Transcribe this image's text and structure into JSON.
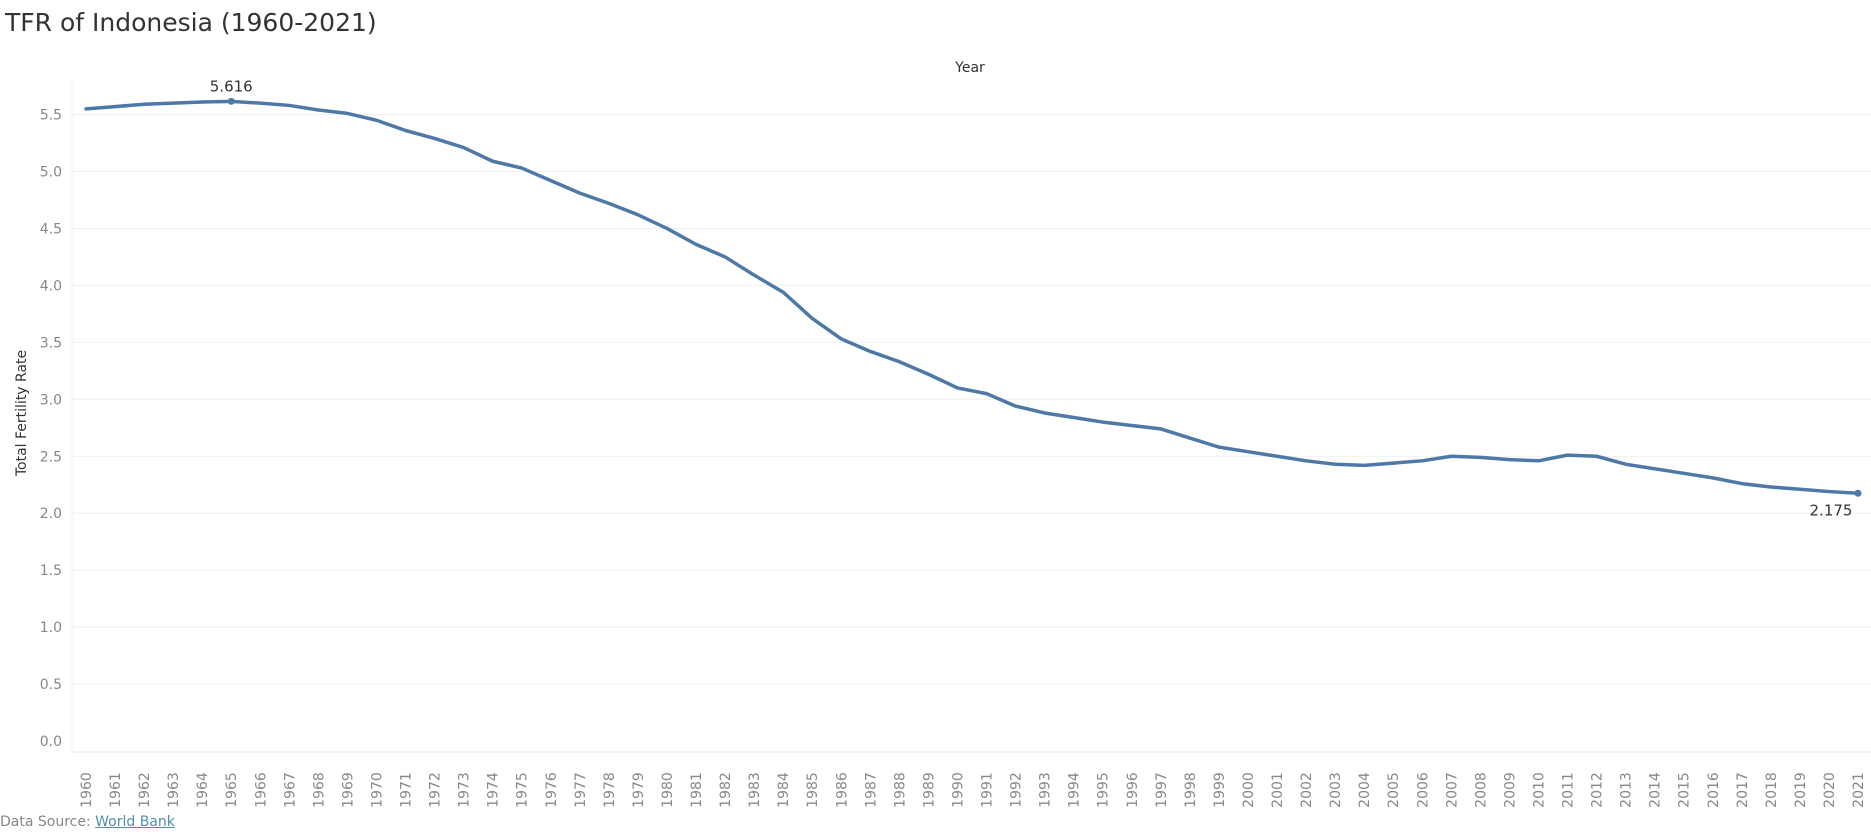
{
  "page": {
    "title": "TFR of Indonesia (1960-2021)",
    "source_label": "Data Source: ",
    "source_link": "World Bank"
  },
  "chart_data": {
    "type": "line",
    "title": "TFR of Indonesia (1960-2021)",
    "xlabel": "Year",
    "ylabel": "Total Fertility Rate",
    "ylim": [
      0,
      5.9
    ],
    "yticks": [
      0.0,
      0.5,
      1.0,
      1.5,
      2.0,
      2.5,
      3.0,
      3.5,
      4.0,
      4.5,
      5.0,
      5.5
    ],
    "grid": true,
    "color": "#4e79a7",
    "x": [
      1960,
      1961,
      1962,
      1963,
      1964,
      1965,
      1966,
      1967,
      1968,
      1969,
      1970,
      1971,
      1972,
      1973,
      1974,
      1975,
      1976,
      1977,
      1978,
      1979,
      1980,
      1981,
      1982,
      1983,
      1984,
      1985,
      1986,
      1987,
      1988,
      1989,
      1990,
      1991,
      1992,
      1993,
      1994,
      1995,
      1996,
      1997,
      1998,
      1999,
      2000,
      2001,
      2002,
      2003,
      2004,
      2005,
      2006,
      2007,
      2008,
      2009,
      2010,
      2011,
      2012,
      2013,
      2014,
      2015,
      2016,
      2017,
      2018,
      2019,
      2020,
      2021
    ],
    "values": [
      5.55,
      5.57,
      5.59,
      5.6,
      5.61,
      5.616,
      5.6,
      5.58,
      5.54,
      5.51,
      5.45,
      5.36,
      5.29,
      5.21,
      5.09,
      5.03,
      4.92,
      4.81,
      4.72,
      4.62,
      4.5,
      4.36,
      4.25,
      4.09,
      3.94,
      3.71,
      3.53,
      3.42,
      3.33,
      3.22,
      3.1,
      3.05,
      2.94,
      2.88,
      2.84,
      2.8,
      2.77,
      2.74,
      2.66,
      2.58,
      2.54,
      2.5,
      2.46,
      2.43,
      2.42,
      2.44,
      2.46,
      2.5,
      2.49,
      2.47,
      2.46,
      2.51,
      2.5,
      2.43,
      2.39,
      2.35,
      2.31,
      2.26,
      2.23,
      2.21,
      2.19,
      2.175
    ],
    "annotations": [
      {
        "year": 1965,
        "label": "5.616"
      },
      {
        "year": 2021,
        "label": "2.175"
      }
    ]
  }
}
